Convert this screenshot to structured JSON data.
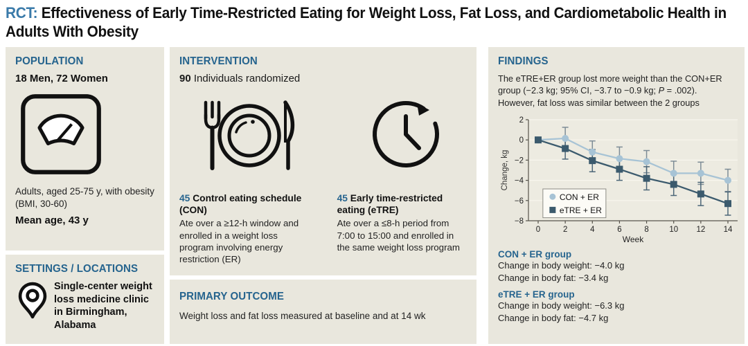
{
  "title": {
    "tag": "RCT:",
    "text": " Effectiveness of Early Time-Restricted Eating for Weight Loss, Fat Loss, and Cardiometabolic Health in Adults With Obesity"
  },
  "population": {
    "header": "POPULATION",
    "counts": "18 Men, 72 Women",
    "icon": "weight-scale",
    "description": "Adults, aged 25-75 y, with obesity (BMI, 30-60)",
    "mean_age": "Mean age, 43 y"
  },
  "settings": {
    "header": "SETTINGS / LOCATIONS",
    "icon": "location-pin",
    "text": "Single-center weight loss medicine clinic in Birmingham, Alabama"
  },
  "intervention": {
    "header": "INTERVENTION",
    "count": "90",
    "count_label": " Individuals randomized",
    "groups": [
      {
        "count": "45",
        "title": " Control eating schedule (CON)",
        "description": "Ate over a ≥12-h window and enrolled in a weight loss program involving energy restriction (ER)",
        "icon": "meal-plate-fork-knife"
      },
      {
        "count": "45",
        "title": " Early time-restricted eating (eTRE)",
        "description": "Ate over a ≤8-h period from 7:00 to 15:00 and enrolled in the same weight loss program",
        "icon": "clock-with-arrow"
      }
    ]
  },
  "primary_outcome": {
    "header": "PRIMARY OUTCOME",
    "text": "Weight loss and fat loss measured at baseline and at 14 wk"
  },
  "findings": {
    "header": "FINDINGS",
    "summary_before_p": "The eTRE+ER group lost more weight than the CON+ER group (−2.3 kg; 95% CI, −3.7 to −0.9 kg; ",
    "summary_p": "P",
    "summary_after_p": " = .002). However, fat loss was similar between the 2 groups",
    "groups": [
      {
        "name": "CON + ER group",
        "weight": "Change in body weight: −4.0 kg",
        "fat": "Change in body fat: −3.4 kg"
      },
      {
        "name": "eTRE + ER group",
        "weight": "Change in body weight: −6.3 kg",
        "fat": "Change in body fat: −4.7 kg"
      }
    ]
  },
  "chart_data": {
    "type": "line",
    "x": [
      0,
      2,
      4,
      6,
      8,
      10,
      12,
      14
    ],
    "xlabel": "Week",
    "ylabel": "Change, kg",
    "ylim": [
      -8,
      2
    ],
    "xticks": [
      0,
      2,
      4,
      6,
      8,
      10,
      12,
      14
    ],
    "yticks": [
      2,
      0,
      -2,
      -4,
      -6,
      -8
    ],
    "grid": true,
    "legend_position": "lower left",
    "series": [
      {
        "name": "CON + ER",
        "marker": "circle",
        "color": "#a7c3d5",
        "error_color": "#7d8c96",
        "values": [
          0,
          0.15,
          -1.2,
          -1.85,
          -2.15,
          -3.3,
          -3.3,
          -4.0
        ],
        "errors": [
          0,
          1.1,
          1.1,
          1.15,
          1.1,
          1.2,
          1.1,
          1.1
        ]
      },
      {
        "name": "eTRE + ER",
        "marker": "square",
        "color": "#3b5a6d",
        "error_color": "#4c6678",
        "values": [
          0,
          -0.85,
          -2.05,
          -2.9,
          -3.8,
          -4.4,
          -5.35,
          -6.3
        ],
        "errors": [
          0,
          1.05,
          1.1,
          1.1,
          1.15,
          1.1,
          1.15,
          1.15
        ]
      }
    ]
  },
  "colors": {
    "accent": "#26648e",
    "title_tag": "#3a7aa9",
    "panel_bg": "#e9e7dd",
    "plot_bg": "#edebe1",
    "grid_line": "#f8f6ee",
    "con_series": "#a7c3d5",
    "etre_series": "#3b5a6d"
  }
}
